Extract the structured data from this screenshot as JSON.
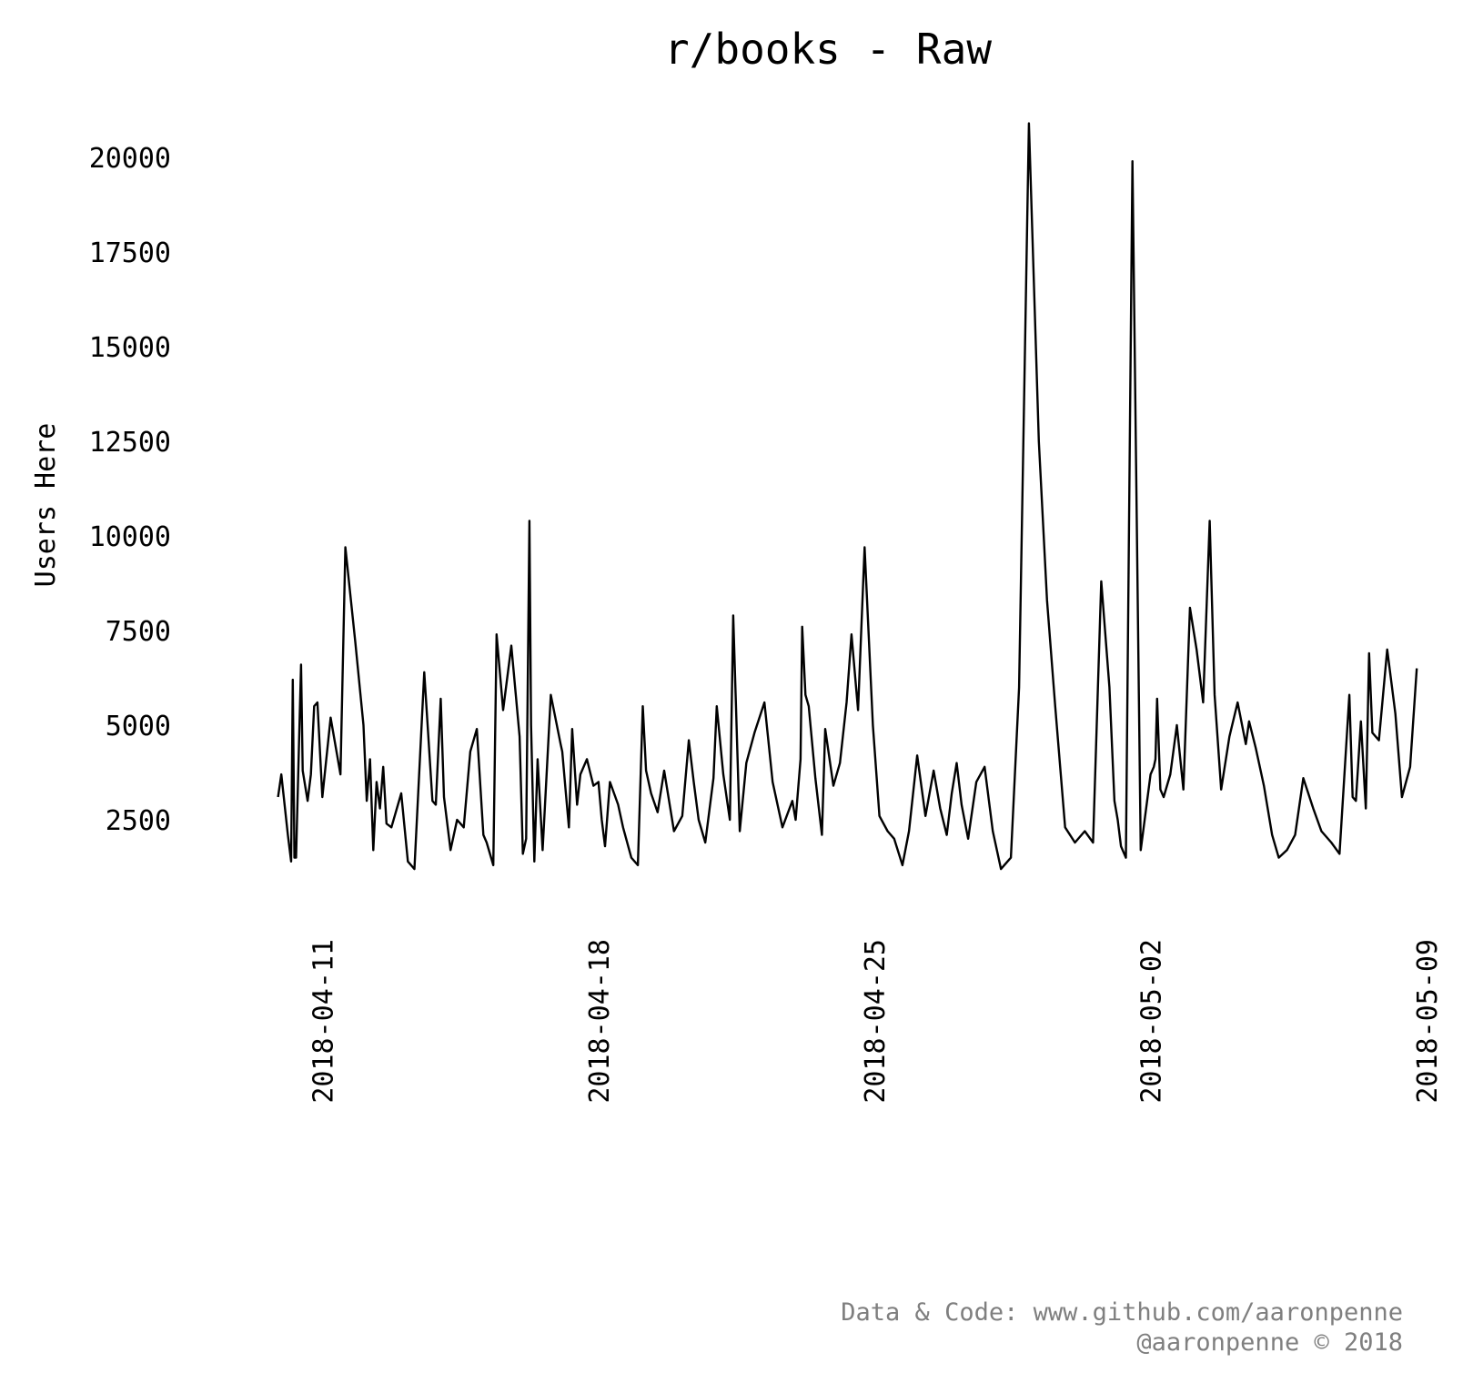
{
  "chart_data": {
    "type": "line",
    "title": "r/books - Raw",
    "xlabel": "",
    "ylabel": "Users Here",
    "y_ticks": [
      2500,
      5000,
      7500,
      10000,
      12500,
      15000,
      17500,
      20000
    ],
    "x_ticks": [
      "2018-04-11",
      "2018-04-18",
      "2018-04-25",
      "2018-05-02",
      "2018-05-09"
    ],
    "xlim": [
      "2018-04-10",
      "2018-05-09"
    ],
    "ylim": [
      1100,
      21200
    ],
    "grid": false,
    "legend": "none",
    "series": [
      {
        "color": "#000000",
        "x": [
          "2018-04-09T21:00",
          "2018-04-09T23:00",
          "2018-04-10T03:00",
          "2018-04-10T05:00",
          "2018-04-10T06:00",
          "2018-04-10T07:00",
          "2018-04-10T08:00",
          "2018-04-10T11:00",
          "2018-04-10T12:00",
          "2018-04-10T15:00",
          "2018-04-10T17:00",
          "2018-04-10T19:00",
          "2018-04-10T21:00",
          "2018-04-11T00:00",
          "2018-04-11T05:00",
          "2018-04-11T11:00",
          "2018-04-11T14:00",
          "2018-04-11T20:00",
          "2018-04-12T01:00",
          "2018-04-12T03:00",
          "2018-04-12T05:00",
          "2018-04-12T07:00",
          "2018-04-12T09:00",
          "2018-04-12T11:00",
          "2018-04-12T13:00",
          "2018-04-12T15:00",
          "2018-04-12T18:00",
          "2018-04-13T00:00",
          "2018-04-13T04:00",
          "2018-04-13T08:00",
          "2018-04-13T14:00",
          "2018-04-13T19:00",
          "2018-04-13T21:00",
          "2018-04-14T00:00",
          "2018-04-14T02:00",
          "2018-04-14T06:00",
          "2018-04-14T10:00",
          "2018-04-14T14:00",
          "2018-04-14T18:00",
          "2018-04-14T22:00",
          "2018-04-15T02:00",
          "2018-04-15T04:00",
          "2018-04-15T08:00",
          "2018-04-15T10:00",
          "2018-04-15T14:00",
          "2018-04-15T19:00",
          "2018-04-16T00:00",
          "2018-04-16T02:00",
          "2018-04-16T04:00",
          "2018-04-16T06:00",
          "2018-04-16T07:00",
          "2018-04-16T09:00",
          "2018-04-16T11:00",
          "2018-04-16T14:00",
          "2018-04-16T19:00",
          "2018-04-17T01:00",
          "2018-04-17T02:00",
          "2018-04-17T04:00",
          "2018-04-17T06:00",
          "2018-04-17T08:00",
          "2018-04-17T11:00",
          "2018-04-17T13:00",
          "2018-04-17T17:00",
          "2018-04-17T21:00",
          "2018-04-18T00:00",
          "2018-04-18T02:00",
          "2018-04-18T04:00",
          "2018-04-18T07:00",
          "2018-04-18T12:00",
          "2018-04-18T15:00",
          "2018-04-18T20:00",
          "2018-04-19T00:00",
          "2018-04-19T03:00",
          "2018-04-19T05:00",
          "2018-04-19T08:00",
          "2018-04-19T12:00",
          "2018-04-19T16:00",
          "2018-04-19T22:00",
          "2018-04-20T03:00",
          "2018-04-20T07:00",
          "2018-04-20T10:00",
          "2018-04-20T13:00",
          "2018-04-20T17:00",
          "2018-04-20T22:00",
          "2018-04-21T00:00",
          "2018-04-21T04:00",
          "2018-04-21T08:00",
          "2018-04-21T10:00",
          "2018-04-21T14:00",
          "2018-04-21T18:00",
          "2018-04-21T23:00",
          "2018-04-22T05:00",
          "2018-04-22T10:00",
          "2018-04-22T16:00",
          "2018-04-22T22:00",
          "2018-04-23T00:00",
          "2018-04-23T03:00",
          "2018-04-23T04:00",
          "2018-04-23T06:00",
          "2018-04-23T08:00",
          "2018-04-23T12:00",
          "2018-04-23T16:00",
          "2018-04-23T18:00",
          "2018-04-23T23:00",
          "2018-04-24T03:00",
          "2018-04-24T07:00",
          "2018-04-24T10:00",
          "2018-04-24T14:00",
          "2018-04-24T18:00",
          "2018-04-24T23:00",
          "2018-04-25T03:00",
          "2018-04-25T08:00",
          "2018-04-25T12:00",
          "2018-04-25T17:00",
          "2018-04-25T21:00",
          "2018-04-26T02:00",
          "2018-04-26T07:00",
          "2018-04-26T12:00",
          "2018-04-26T16:00",
          "2018-04-26T20:00",
          "2018-04-26T23:00",
          "2018-04-27T02:00",
          "2018-04-27T05:00",
          "2018-04-27T09:00",
          "2018-04-27T14:00",
          "2018-04-27T19:00",
          "2018-04-28T00:00",
          "2018-04-28T05:00",
          "2018-04-28T11:00",
          "2018-04-28T16:00",
          "2018-04-28T22:00",
          "2018-04-29T04:00",
          "2018-04-29T09:00",
          "2018-04-29T14:00",
          "2018-04-29T20:00",
          "2018-04-30T02:00",
          "2018-04-30T08:00",
          "2018-04-30T13:00",
          "2018-04-30T18:00",
          "2018-04-30T23:00",
          "2018-05-01T02:00",
          "2018-05-01T04:00",
          "2018-05-01T06:00",
          "2018-05-01T09:00",
          "2018-05-01T13:00",
          "2018-05-01T18:00",
          "2018-05-02T00:00",
          "2018-05-02T02:00",
          "2018-05-02T03:00",
          "2018-05-02T04:00",
          "2018-05-02T06:00",
          "2018-05-02T08:00",
          "2018-05-02T12:00",
          "2018-05-02T16:00",
          "2018-05-02T20:00",
          "2018-05-03T00:00",
          "2018-05-03T04:00",
          "2018-05-03T08:00",
          "2018-05-03T12:00",
          "2018-05-03T15:00",
          "2018-05-03T19:00",
          "2018-05-04T00:00",
          "2018-05-04T05:00",
          "2018-05-04T10:00",
          "2018-05-04T12:00",
          "2018-05-04T16:00",
          "2018-05-04T21:00",
          "2018-05-05T02:00",
          "2018-05-05T06:00",
          "2018-05-05T11:00",
          "2018-05-05T16:00",
          "2018-05-05T21:00",
          "2018-05-06T03:00",
          "2018-05-06T08:00",
          "2018-05-06T14:00",
          "2018-05-06T19:00",
          "2018-05-07T01:00",
          "2018-05-07T03:00",
          "2018-05-07T05:00",
          "2018-05-07T08:00",
          "2018-05-07T11:00",
          "2018-05-07T13:00",
          "2018-05-07T15:00",
          "2018-05-07T19:00",
          "2018-05-08T00:00",
          "2018-05-08T05:00",
          "2018-05-08T09:00",
          "2018-05-08T14:00",
          "2018-05-08T18:00"
        ],
        "values": [
          3100,
          3700,
          2100,
          1400,
          6200,
          1500,
          1500,
          6600,
          3800,
          3000,
          3700,
          5500,
          5600,
          3100,
          5200,
          3700,
          9700,
          7200,
          5000,
          3000,
          4100,
          1700,
          3500,
          2800,
          3900,
          2400,
          2300,
          3200,
          1400,
          1200,
          6400,
          3000,
          2900,
          5700,
          3100,
          1700,
          2500,
          2300,
          4300,
          4900,
          2100,
          1900,
          1300,
          7400,
          5400,
          7100,
          4700,
          1600,
          2000,
          10400,
          5000,
          1400,
          4100,
          1700,
          5800,
          4500,
          4300,
          3300,
          2300,
          4900,
          2900,
          3700,
          4100,
          3400,
          3500,
          2500,
          1800,
          3500,
          2900,
          2300,
          1500,
          1300,
          5500,
          3800,
          3200,
          2700,
          3800,
          2200,
          2600,
          4600,
          3500,
          2500,
          1900,
          3600,
          5500,
          3700,
          2500,
          7900,
          2200,
          4000,
          4800,
          5600,
          3500,
          2300,
          3000,
          2500,
          4100,
          7600,
          5800,
          5500,
          3600,
          2100,
          4900,
          3400,
          4000,
          5600,
          7400,
          5400,
          9700,
          5000,
          2600,
          2200,
          2000,
          1300,
          2200,
          4200,
          2600,
          3800,
          2800,
          2100,
          3200,
          4000,
          2900,
          2000,
          3500,
          3900,
          2200,
          1200,
          1500,
          6000,
          20900,
          12500,
          8300,
          5500,
          2300,
          1900,
          2200,
          1900,
          8800,
          6000,
          3000,
          2500,
          1800,
          1500,
          19900,
          1700,
          3700,
          3900,
          4100,
          5700,
          3300,
          3100,
          3700,
          5000,
          3300,
          8100,
          7000,
          5600,
          10400,
          5800,
          3300,
          4700,
          5600,
          4500,
          5100,
          4400,
          3400,
          2100,
          1500,
          1700,
          2100,
          3600,
          2800,
          2200,
          1900,
          1600,
          5800,
          3100,
          3000,
          5100,
          2800,
          6900,
          4800,
          4600,
          7000,
          5300,
          3100,
          3900,
          6500
        ]
      }
    ]
  },
  "footer": {
    "credit_line1": "Data & Code: www.github.com/aaronpenne",
    "credit_line2": "@aaronpenne © 2018"
  }
}
